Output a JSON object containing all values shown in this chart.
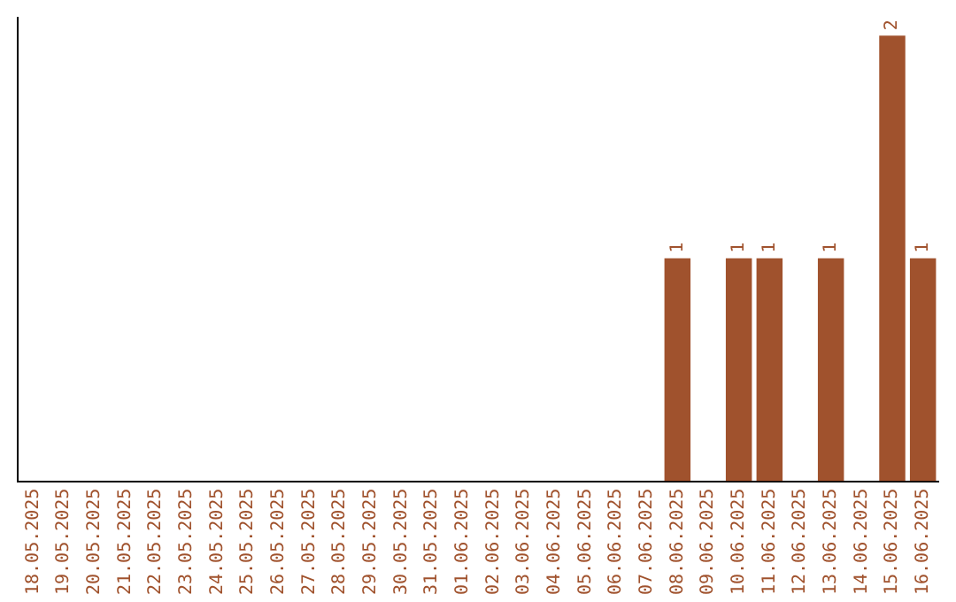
{
  "chart_data": {
    "type": "bar",
    "categories": [
      "18.05.2025",
      "19.05.2025",
      "20.05.2025",
      "21.05.2025",
      "22.05.2025",
      "23.05.2025",
      "24.05.2025",
      "25.05.2025",
      "26.05.2025",
      "27.05.2025",
      "28.05.2025",
      "29.05.2025",
      "30.05.2025",
      "31.05.2025",
      "01.06.2025",
      "02.06.2025",
      "03.06.2025",
      "04.06.2025",
      "05.06.2025",
      "06.06.2025",
      "07.06.2025",
      "08.06.2025",
      "09.06.2025",
      "10.06.2025",
      "11.06.2025",
      "12.06.2025",
      "13.06.2025",
      "14.06.2025",
      "15.06.2025",
      "16.06.2025"
    ],
    "values": [
      null,
      null,
      null,
      null,
      null,
      null,
      null,
      null,
      null,
      null,
      null,
      null,
      null,
      null,
      null,
      null,
      null,
      null,
      null,
      null,
      null,
      1,
      null,
      1,
      1,
      null,
      1,
      null,
      2,
      1
    ],
    "data_labels": true,
    "ylim": [
      0,
      2.08
    ],
    "tick_labels": "x",
    "color": "#a0522d",
    "grid": false,
    "legend": false
  }
}
